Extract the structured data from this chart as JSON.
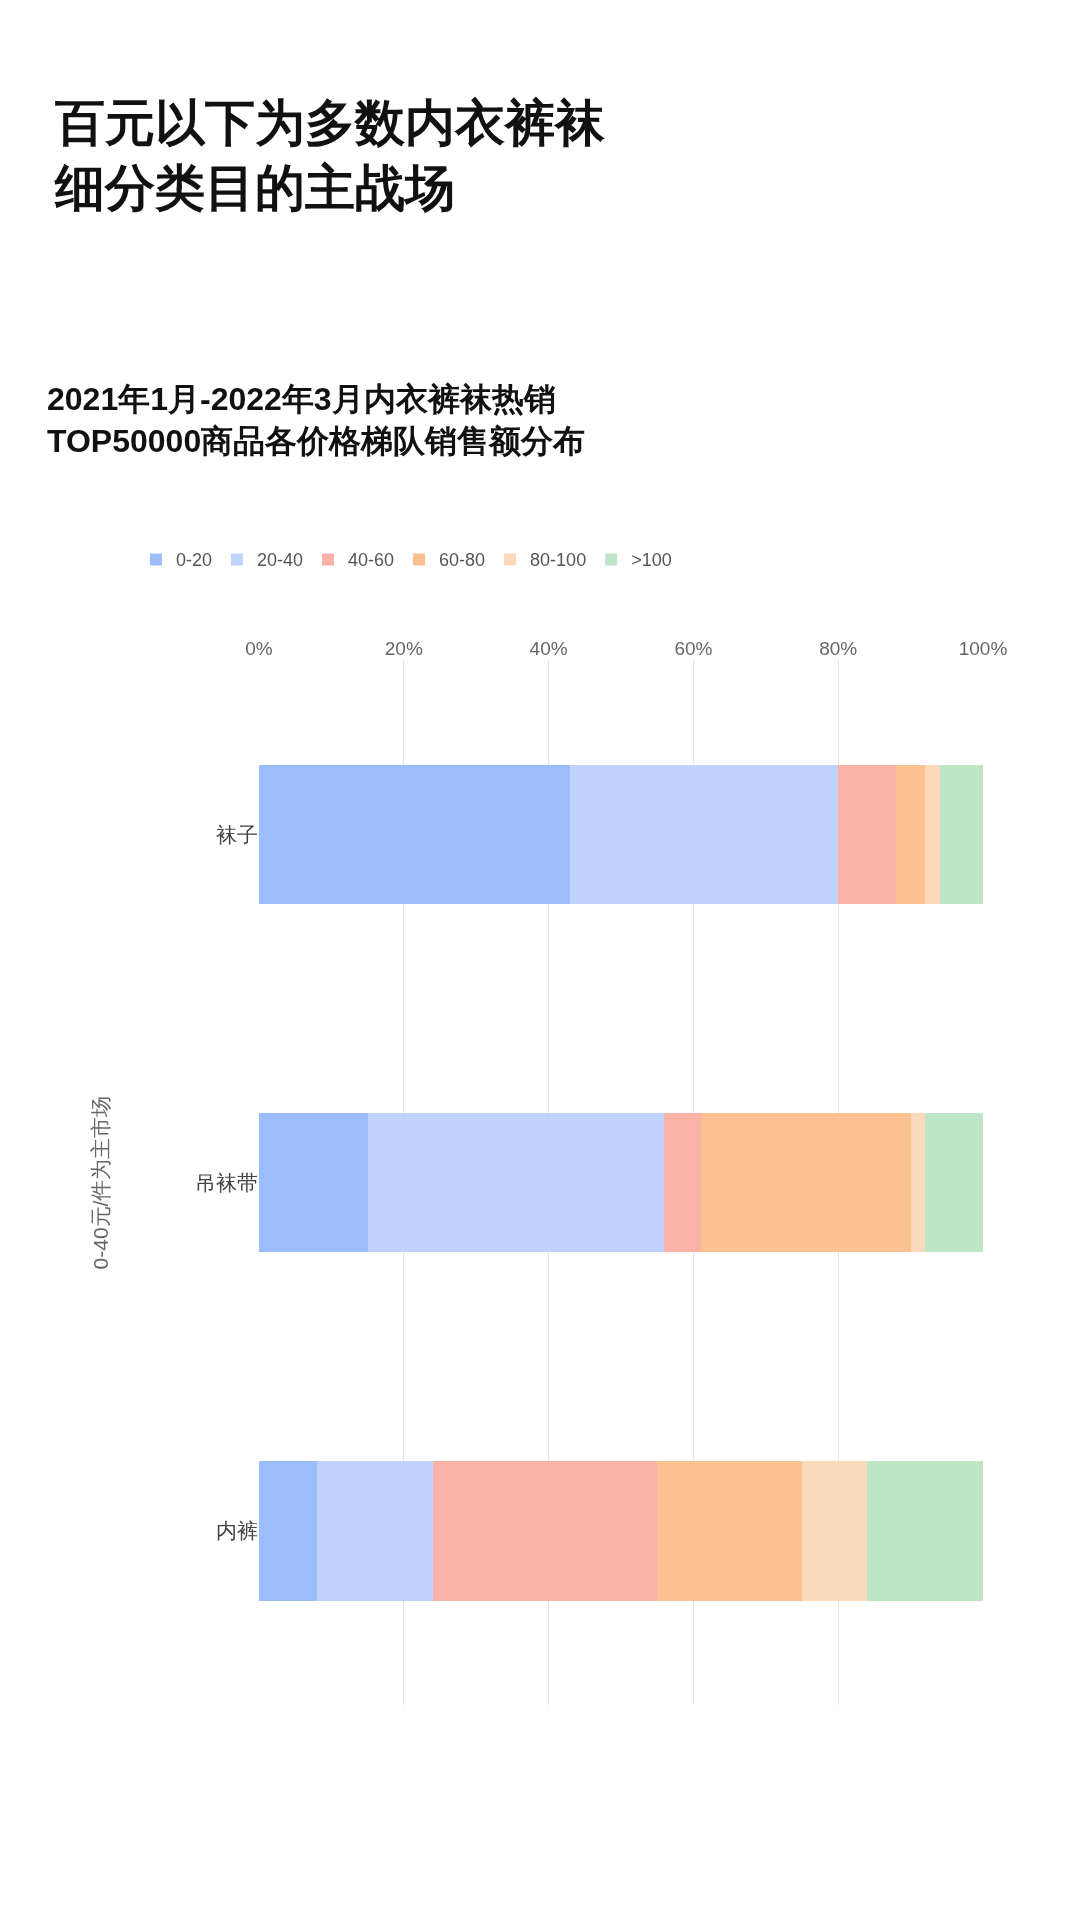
{
  "chart_data": {
    "type": "bar",
    "orientation": "horizontal",
    "stacked": true,
    "title": "百元以下为多数内衣裤袜细分类目的主战场",
    "subtitle": "2021年1月-2022年3月内衣裤袜热销\nTOP50000商品各价格梯队销售额分布",
    "ylabel": "0-40元/件为主市场",
    "categories": [
      "袜子",
      "吊袜带",
      "内裤"
    ],
    "series": [
      {
        "name": "0-20",
        "color": "#9dbcfb",
        "values": [
          43,
          15,
          8
        ]
      },
      {
        "name": "20-40",
        "color": "#c0d3fd",
        "values": [
          37,
          41,
          16
        ]
      },
      {
        "name": "40-60",
        "color": "#fbb3a9",
        "values": [
          8,
          5,
          31
        ]
      },
      {
        "name": "60-80",
        "color": "#fbc190",
        "values": [
          4,
          29,
          20
        ]
      },
      {
        "name": "80-100",
        "color": "#fdd9bc",
        "values": [
          2,
          2,
          9
        ]
      },
      {
        "name": ">100",
        "color": "#bde5c8",
        "values": [
          6,
          8,
          16
        ]
      }
    ],
    "xlim": [
      0,
      100
    ],
    "xticks": [
      {
        "value": 0,
        "label": "0%"
      },
      {
        "value": 20,
        "label": "20%"
      },
      {
        "value": 40,
        "label": "40%"
      },
      {
        "value": 60,
        "label": "60%"
      },
      {
        "value": 80,
        "label": "80%"
      },
      {
        "value": 100,
        "label": "100%"
      }
    ],
    "grid": "x",
    "legend": "top left"
  }
}
